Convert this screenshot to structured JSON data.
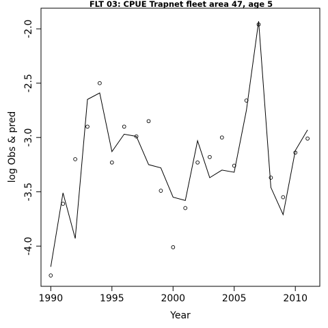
{
  "chart_data": {
    "type": "line",
    "title": "FLT 03: CPUE Trapnet fleet area 47, age 5",
    "xlabel": "Year",
    "ylabel": "log Obs & pred",
    "xlim": [
      1989.2,
      2012.0
    ],
    "ylim": [
      -4.37,
      -1.81
    ],
    "x_ticks": [
      1990,
      1995,
      2000,
      2005,
      2010
    ],
    "x_tick_labels": [
      "1990",
      "1995",
      "2000",
      "2005",
      "2010"
    ],
    "y_ticks": [
      -4.0,
      -3.5,
      -3.0,
      -2.5,
      -2.0
    ],
    "y_tick_labels": [
      "-4.0",
      "-3.5",
      "-3.0",
      "-2.5",
      "-2.0"
    ],
    "grid": false,
    "legend": "none",
    "series": [
      {
        "style": "line",
        "x": [
          1990,
          1991,
          1992,
          1993,
          1994,
          1995,
          1996,
          1997,
          1998,
          1999,
          2000,
          2001,
          2002,
          2003,
          2004,
          2005,
          2006,
          2007,
          2008,
          2009,
          2010,
          2011
        ],
        "values": [
          -4.19,
          -3.51,
          -3.93,
          -2.65,
          -2.59,
          -3.13,
          -2.97,
          -2.99,
          -3.25,
          -3.28,
          -3.55,
          -3.58,
          -3.03,
          -3.37,
          -3.3,
          -3.32,
          -2.75,
          -1.93,
          -3.46,
          -3.71,
          -3.12,
          -2.93
        ]
      },
      {
        "style": "points",
        "x": [
          1990,
          1991,
          1992,
          1993,
          1994,
          1995,
          1996,
          1997,
          1998,
          1999,
          2000,
          2001,
          2002,
          2003,
          2004,
          2005,
          2006,
          2007,
          2008,
          2009,
          2010,
          2011
        ],
        "values": [
          -4.27,
          -3.61,
          -3.2,
          -2.9,
          -2.5,
          -3.23,
          -2.9,
          -2.99,
          -2.85,
          -3.49,
          -4.01,
          -3.65,
          -3.23,
          -3.18,
          -3.0,
          -3.26,
          -2.66,
          -1.96,
          -3.37,
          -3.55,
          -3.14,
          -3.01
        ]
      }
    ]
  }
}
